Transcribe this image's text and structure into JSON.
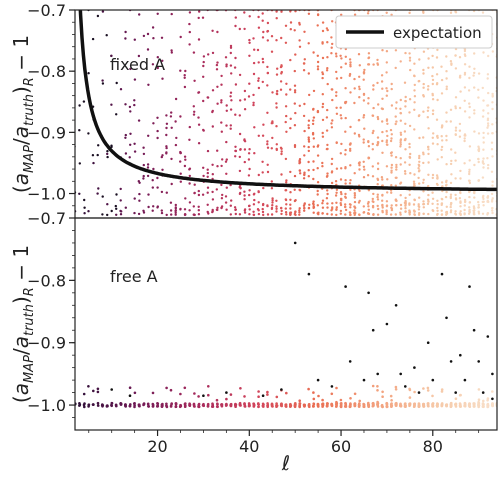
{
  "colors": {
    "expectation_line": "#111111",
    "outlier_points": "#111111",
    "gradient": [
      "#2b0f36",
      "#6e1a55",
      "#a42a5c",
      "#d1445b",
      "#ea6f53",
      "#f2a07c",
      "#f6c9a8",
      "#f8e1cc"
    ]
  },
  "chart_data": [
    {
      "type": "scatter",
      "panel_label": "fixed A",
      "ylabel": "(a_MAP/a_truth)_R − 1",
      "ylabel_parts": {
        "open": "(",
        "a1": "a",
        "sub1": "MAP",
        "slash": "/",
        "a2": "a",
        "sub2": "truth",
        "close": ")",
        "subR": "R",
        "tail": " − 1"
      },
      "xlabel": "",
      "xlim": [
        2,
        94
      ],
      "ylim": [
        -1.04,
        -0.7
      ],
      "yticks": [
        -1.0,
        -0.9,
        -0.8,
        -0.7
      ],
      "ytick_labels": [
        "−1.0",
        "−0.9",
        "−0.8",
        "−0.7"
      ],
      "xticks": [
        20,
        40,
        60,
        80
      ],
      "grid": false,
      "legend": {
        "placement": "top-right",
        "entries": [
          "expectation"
        ]
      },
      "series": [
        {
          "name": "expectation",
          "kind": "line",
          "formula_note": "falls from about -0.69 at l=2 toward -1.0 for large l"
        }
      ],
      "scatter_description": "one column of points per multipole l from 2 to 94, spread between about -1.04 and -0.70, color ramps with l",
      "sample_points": [
        {
          "x": 5,
          "y": -0.8
        },
        {
          "x": 8,
          "y": -0.79
        },
        {
          "x": 10,
          "y": -0.92
        },
        {
          "x": 25,
          "y": -0.76
        },
        {
          "x": 40,
          "y": -0.98
        },
        {
          "x": 60,
          "y": -1.0
        },
        {
          "x": 80,
          "y": -0.95
        },
        {
          "x": 93,
          "y": -1.01
        }
      ]
    },
    {
      "type": "scatter",
      "panel_label": "free A",
      "ylabel": "(a_MAP/a_truth)_R − 1",
      "ylabel_parts": {
        "open": "(",
        "a1": "a",
        "sub1": "MAP",
        "slash": "/",
        "a2": "a",
        "sub2": "truth",
        "close": ")",
        "subR": "R",
        "tail": " − 1"
      },
      "xlabel": "ℓ",
      "xlim": [
        2,
        94
      ],
      "ylim": [
        -1.04,
        -0.7
      ],
      "yticks": [
        -1.0,
        -0.9,
        -0.8,
        -0.7
      ],
      "ytick_labels": [
        "−1.0",
        "−0.9",
        "−0.8",
        "−0.7"
      ],
      "xticks": [
        20,
        40,
        60,
        80
      ],
      "xtick_labels": [
        "20",
        "40",
        "60",
        "80"
      ],
      "grid": false,
      "scatter_description": "dense band of points at -1.0 for every l, with sparse black outliers above",
      "outliers": [
        {
          "x": 10,
          "y": -0.975
        },
        {
          "x": 14,
          "y": -0.985
        },
        {
          "x": 30,
          "y": -0.985
        },
        {
          "x": 35,
          "y": -0.98
        },
        {
          "x": 43,
          "y": -0.985
        },
        {
          "x": 47,
          "y": -0.975
        },
        {
          "x": 50,
          "y": -0.74
        },
        {
          "x": 53,
          "y": -0.79
        },
        {
          "x": 55,
          "y": -0.96
        },
        {
          "x": 58,
          "y": -0.97
        },
        {
          "x": 61,
          "y": -0.81
        },
        {
          "x": 62,
          "y": -0.93
        },
        {
          "x": 65,
          "y": -0.96
        },
        {
          "x": 66,
          "y": -0.82
        },
        {
          "x": 67,
          "y": -0.88
        },
        {
          "x": 68,
          "y": -0.95
        },
        {
          "x": 70,
          "y": -0.87
        },
        {
          "x": 72,
          "y": -0.84
        },
        {
          "x": 73,
          "y": -0.95
        },
        {
          "x": 74,
          "y": -0.97
        },
        {
          "x": 76,
          "y": -0.94
        },
        {
          "x": 77,
          "y": -0.98
        },
        {
          "x": 79,
          "y": -0.9
        },
        {
          "x": 80,
          "y": -0.96
        },
        {
          "x": 82,
          "y": -0.79
        },
        {
          "x": 83,
          "y": -0.86
        },
        {
          "x": 84,
          "y": -0.93
        },
        {
          "x": 85,
          "y": -0.98
        },
        {
          "x": 86,
          "y": -0.92
        },
        {
          "x": 87,
          "y": -0.96
        },
        {
          "x": 88,
          "y": -0.81
        },
        {
          "x": 89,
          "y": -0.88
        },
        {
          "x": 90,
          "y": -0.93
        },
        {
          "x": 91,
          "y": -0.98
        },
        {
          "x": 92,
          "y": -0.89
        },
        {
          "x": 93,
          "y": -0.95
        },
        {
          "x": 93,
          "y": -0.99
        }
      ]
    }
  ]
}
